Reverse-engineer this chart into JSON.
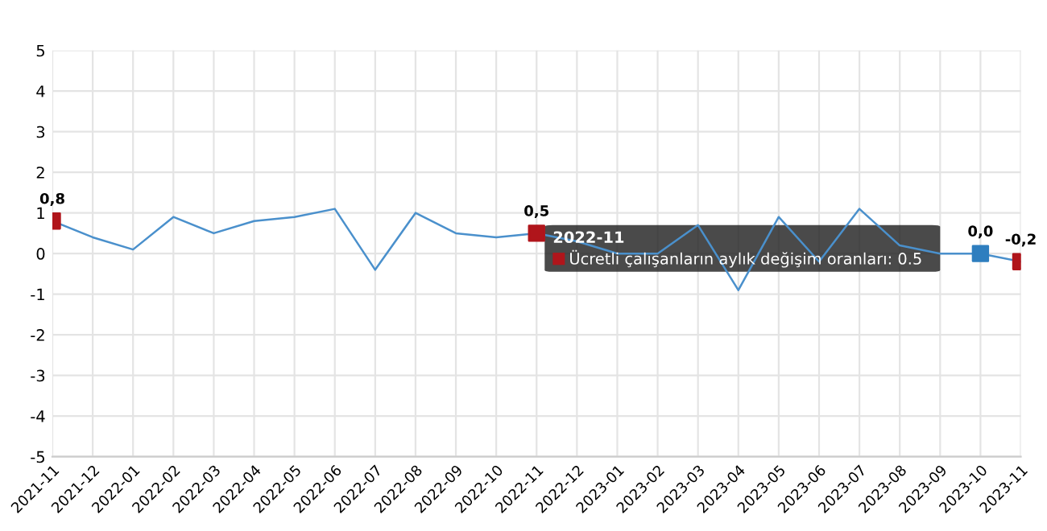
{
  "chart_data": {
    "type": "line",
    "categories": [
      "2021-11",
      "2021-12",
      "2022-01",
      "2022-02",
      "2022-03",
      "2022-04",
      "2022-05",
      "2022-06",
      "2022-07",
      "2022-08",
      "2022-09",
      "2022-10",
      "2022-11",
      "2022-12",
      "2023-01",
      "2023-02",
      "2023-03",
      "2023-04",
      "2023-05",
      "2023-06",
      "2023-07",
      "2023-08",
      "2023-09",
      "2023-10",
      "2023-11"
    ],
    "series": [
      {
        "color": "#4a90cc",
        "values": [
          0.8,
          0.4,
          0.1,
          0.9,
          0.5,
          0.8,
          0.9,
          1.1,
          -0.4,
          1.0,
          0.5,
          0.4,
          0.5,
          0.3,
          0.0,
          0.0,
          0.7,
          -0.9,
          0.9,
          -0.2,
          1.1,
          0.2,
          0.0,
          0.0,
          -0.2
        ],
        "colors": [
          "#b0151b",
          null,
          null,
          null,
          null,
          null,
          null,
          null,
          null,
          null,
          null,
          null,
          "#b0151b",
          null,
          null,
          null,
          null,
          null,
          null,
          null,
          null,
          null,
          null,
          "#2e7ebf",
          "#b0151b"
        ],
        "value_labels": [
          "0,8",
          null,
          null,
          null,
          null,
          null,
          null,
          null,
          null,
          null,
          null,
          null,
          "0,5",
          null,
          null,
          null,
          null,
          null,
          null,
          null,
          null,
          null,
          null,
          "0,0",
          "-0,2"
        ]
      }
    ],
    "ylim": [
      -5,
      5
    ],
    "yticks": [
      -5,
      -4,
      -3,
      -2,
      -1,
      0,
      1,
      2,
      3,
      4,
      5
    ],
    "grid": true,
    "annotations": [
      {
        "text": "2022-11",
        "x": "2022-11",
        "y": 0.5
      },
      {
        "text": "Ücretli çalışanların aylık değişim oranları: 0.5",
        "x": "2022-11",
        "y": 0.5
      }
    ]
  }
}
